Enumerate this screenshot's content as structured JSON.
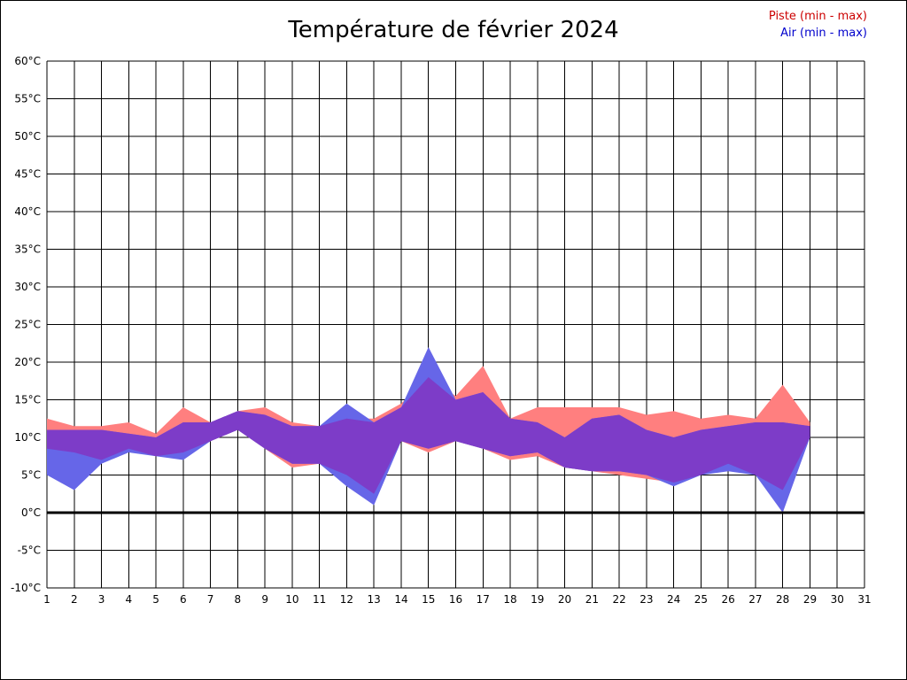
{
  "title": "Température de février 2024",
  "legend": {
    "piste_label": "Piste (min - max)",
    "air_label": "Air (min - max)",
    "piste_color": "#cc0000",
    "air_color": "#0000cc"
  },
  "chart_data": {
    "type": "area",
    "title": "Température de février 2024",
    "xlabel": "",
    "ylabel_suffix": "°C",
    "xlim": [
      1,
      31
    ],
    "ylim": [
      -10,
      60
    ],
    "ytick_step": 5,
    "grid": true,
    "legend_position": "top-right",
    "x": [
      1,
      2,
      3,
      4,
      5,
      6,
      7,
      8,
      9,
      10,
      11,
      12,
      13,
      14,
      15,
      16,
      17,
      18,
      19,
      20,
      21,
      22,
      23,
      24,
      25,
      26,
      27,
      28,
      29
    ],
    "series": [
      {
        "name": "Piste min",
        "values": [
          8.5,
          8,
          7,
          8.5,
          7.5,
          8,
          9.5,
          11,
          8.5,
          6,
          6.5,
          5,
          2.5,
          9.5,
          8,
          9.5,
          8.5,
          7,
          7.5,
          6,
          5.5,
          5,
          4.5,
          4,
          5,
          6.5,
          5,
          3,
          10
        ]
      },
      {
        "name": "Piste max",
        "values": [
          12.5,
          11.5,
          11.5,
          12,
          10.5,
          14,
          12,
          13.5,
          14,
          12,
          11.5,
          12.5,
          12.5,
          14.5,
          18,
          15.5,
          19.5,
          12.5,
          14,
          14,
          14,
          14,
          13,
          13.5,
          12.5,
          13,
          12.5,
          17,
          12
        ]
      },
      {
        "name": "Air min",
        "values": [
          5,
          3,
          6.5,
          8,
          7.5,
          7,
          9.5,
          11,
          8.5,
          6.5,
          6.5,
          3.5,
          1,
          9.5,
          8.5,
          9.5,
          8.5,
          7.5,
          8,
          6,
          5.5,
          5.5,
          5,
          3.5,
          5,
          5.5,
          5,
          0,
          10
        ]
      },
      {
        "name": "Air max",
        "values": [
          11,
          11,
          11,
          10.5,
          10,
          12,
          12,
          13.5,
          13,
          11.5,
          11.5,
          14.5,
          12,
          14,
          22,
          15,
          16,
          12.5,
          12,
          10,
          12.5,
          13,
          11,
          10,
          11,
          11.5,
          12,
          12,
          11.5
        ]
      }
    ],
    "colors": {
      "piste_band": "#ff7f7f",
      "air_band": "#6666e8",
      "overlap_band": "#7d3cc8",
      "grid": "#000000",
      "zero_line": "#000000",
      "axis_text": "#000000"
    }
  }
}
